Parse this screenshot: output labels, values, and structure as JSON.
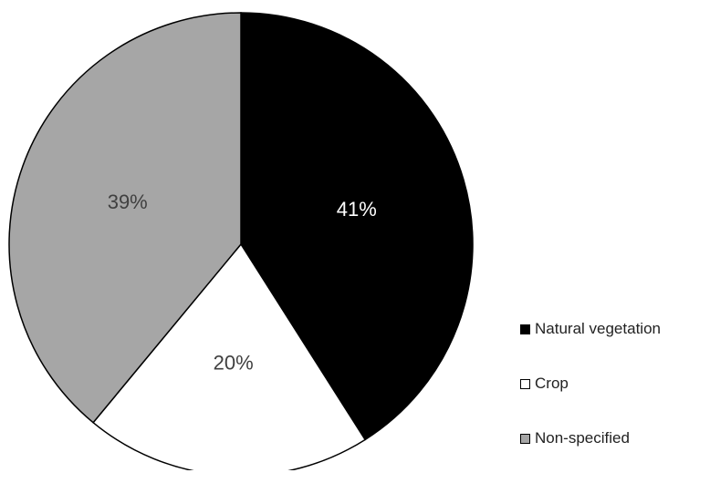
{
  "chart_data": {
    "type": "pie",
    "categories": [
      "Natural vegetation",
      "Crop",
      "Non-specified"
    ],
    "values": [
      41,
      20,
      39
    ],
    "labels": [
      "41%",
      "20%",
      "39%"
    ],
    "colors": [
      "#000000",
      "#ffffff",
      "#a6a6a6"
    ],
    "label_colors": [
      "#ffffff",
      "#404040",
      "#404040"
    ],
    "start_angle_deg": 0,
    "direction": "clockwise",
    "legend_position": "right-bottom",
    "title": ""
  }
}
